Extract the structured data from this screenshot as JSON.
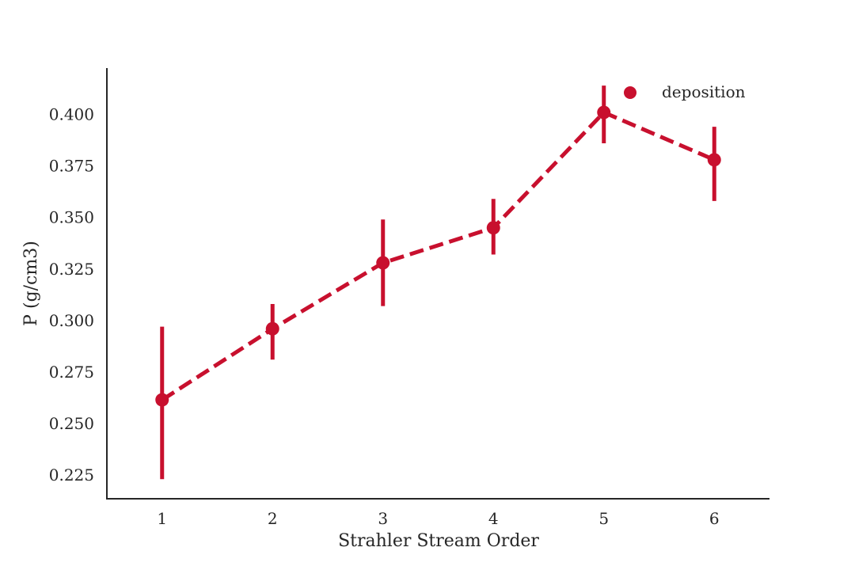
{
  "chart_data": {
    "type": "line",
    "title": "",
    "xlabel": "Strahler Stream Order",
    "ylabel": "P (g/cm3)",
    "categories": [
      "1",
      "2",
      "3",
      "4",
      "5",
      "6"
    ],
    "series": [
      {
        "name": "deposition",
        "color": "#c8102e",
        "line_style": "dashed",
        "marker": "circle",
        "values": [
          0.2615,
          0.296,
          0.328,
          0.345,
          0.401,
          0.378
        ],
        "error_low": [
          0.223,
          0.281,
          0.307,
          0.332,
          0.386,
          0.358
        ],
        "error_high": [
          0.297,
          0.308,
          0.349,
          0.359,
          0.414,
          0.394
        ]
      }
    ],
    "ylim": [
      0.2135,
      0.4225
    ],
    "yticks": [
      "0.225",
      "0.250",
      "0.275",
      "0.300",
      "0.325",
      "0.350",
      "0.375",
      "0.400"
    ],
    "grid": false,
    "legend_position": "top-right",
    "spines": [
      "left",
      "bottom"
    ]
  }
}
